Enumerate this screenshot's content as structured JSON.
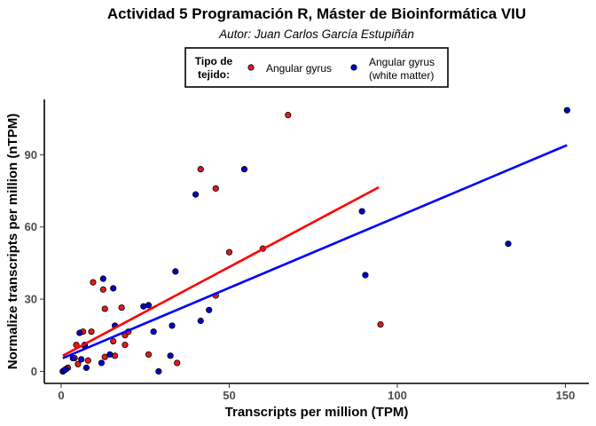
{
  "chart_data": {
    "type": "scatter",
    "title": "Actividad 5 Programación R, Máster de Bioinformática VIU",
    "subtitle": "Autor: Juan Carlos García Estupiñán",
    "xlabel": "Transcripts per million (TPM)",
    "ylabel": "Normalize transcripts per million (nTPM)",
    "xlim": [
      -5,
      157
    ],
    "ylim": [
      -5,
      113
    ],
    "x_ticks": [
      0,
      50,
      100,
      150
    ],
    "y_ticks": [
      0,
      30,
      60,
      90
    ],
    "grid": false,
    "legend": {
      "title_lines": [
        "Tipo de",
        "tejido:"
      ],
      "placement": "top",
      "entries": [
        {
          "label_lines": [
            "Angular gyrus"
          ],
          "color": "#e41a1c"
        },
        {
          "label_lines": [
            "Angular gyrus",
            "(white matter)"
          ],
          "color": "#0000cc"
        }
      ]
    },
    "series": [
      {
        "name": "Angular gyrus",
        "point_color": "#e41a1c",
        "line_color": "#ff0000",
        "fit_line": {
          "x": [
            0.5,
            94.5
          ],
          "y": [
            6.5,
            76.5
          ]
        },
        "points": [
          [
            67.5,
            106.5
          ],
          [
            41.5,
            84
          ],
          [
            46,
            76
          ],
          [
            60,
            51
          ],
          [
            50,
            49.5
          ],
          [
            46,
            31.5
          ],
          [
            95,
            19.5
          ],
          [
            34.5,
            3.5
          ],
          [
            26,
            7
          ],
          [
            9.5,
            37
          ],
          [
            12.5,
            34
          ],
          [
            18,
            26.5
          ],
          [
            13,
            26
          ],
          [
            9,
            16.5
          ],
          [
            6.5,
            16.5
          ],
          [
            19,
            15
          ],
          [
            20,
            16.5
          ],
          [
            15.5,
            12.5
          ],
          [
            4.5,
            11
          ],
          [
            7,
            10.5
          ],
          [
            19,
            11
          ],
          [
            8,
            4.5
          ],
          [
            5,
            3
          ],
          [
            13,
            6
          ],
          [
            16,
            6.5
          ],
          [
            4,
            5.5
          ],
          [
            2,
            1.5
          ],
          [
            1,
            0.5
          ],
          [
            0.5,
            0
          ]
        ]
      },
      {
        "name": "Angular gyrus (white matter)",
        "point_color": "#0000cc",
        "line_color": "#0000ff",
        "fit_line": {
          "x": [
            0.5,
            150.5
          ],
          "y": [
            5.5,
            94
          ]
        },
        "points": [
          [
            150.5,
            108.5
          ],
          [
            54.5,
            84
          ],
          [
            40,
            73.5
          ],
          [
            89.5,
            66.5
          ],
          [
            133,
            53
          ],
          [
            90.5,
            40
          ],
          [
            34,
            41.5
          ],
          [
            12.5,
            38.5
          ],
          [
            15.5,
            34.5
          ],
          [
            26,
            27.5
          ],
          [
            44,
            25.5
          ],
          [
            41.5,
            21
          ],
          [
            33,
            19
          ],
          [
            24.5,
            27
          ],
          [
            16,
            19
          ],
          [
            5.5,
            16
          ],
          [
            7,
            11
          ],
          [
            27.5,
            16.5
          ],
          [
            32.5,
            6.5
          ],
          [
            14.5,
            7
          ],
          [
            12,
            3.5
          ],
          [
            7.5,
            1.5
          ],
          [
            6,
            5
          ],
          [
            29,
            0
          ],
          [
            3.5,
            5.5
          ],
          [
            1.5,
            1
          ],
          [
            0.5,
            0
          ],
          [
            1,
            0.5
          ]
        ]
      }
    ]
  }
}
